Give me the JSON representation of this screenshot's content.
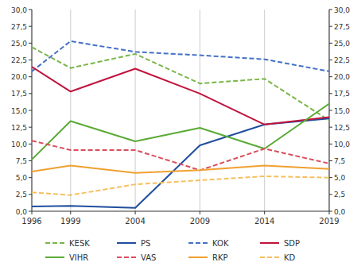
{
  "chart_data": {
    "type": "line",
    "x": [
      1996,
      1999,
      2004,
      2009,
      2014,
      2019
    ],
    "series": [
      {
        "name": "KESK",
        "color": "#7ab648",
        "line_style": "dashed",
        "values": [
          24.4,
          21.3,
          23.4,
          19.0,
          19.7,
          13.5
        ]
      },
      {
        "name": "PS",
        "color": "#1f4e9e",
        "line_style": "solid",
        "values": [
          0.7,
          0.8,
          0.5,
          9.8,
          12.9,
          13.8
        ]
      },
      {
        "name": "KOK",
        "color": "#4472c4",
        "line_style": "dashed",
        "values": [
          20.8,
          25.3,
          23.7,
          23.2,
          22.6,
          20.8
        ]
      },
      {
        "name": "SDP",
        "color": "#c0143c",
        "line_style": "solid",
        "values": [
          21.5,
          17.8,
          21.2,
          17.5,
          12.9,
          14.0
        ]
      },
      {
        "name": "VIHR",
        "color": "#5aaa35",
        "line_style": "solid",
        "values": [
          7.7,
          13.4,
          10.4,
          12.4,
          9.3,
          16.0
        ]
      },
      {
        "name": "VAS",
        "color": "#d94f5c",
        "line_style": "dashed",
        "values": [
          10.5,
          9.1,
          9.1,
          6.1,
          9.3,
          7.1
        ]
      },
      {
        "name": "RKP",
        "color": "#f0a030",
        "line_style": "solid",
        "values": [
          5.9,
          6.8,
          5.7,
          6.1,
          6.8,
          6.3
        ]
      },
      {
        "name": "KD",
        "color": "#f5c060",
        "line_style": "dashed",
        "values": [
          2.8,
          2.4,
          4.0,
          4.6,
          5.2,
          5.0
        ]
      }
    ],
    "xlim": [
      1996,
      2019
    ],
    "xticks": [
      1996,
      1999,
      2004,
      2009,
      2014,
      2019
    ],
    "ylim": [
      0,
      30
    ],
    "yticks": [
      {
        "value": 0.0,
        "label": "0,0"
      },
      {
        "value": 2.5,
        "label": "2,5"
      },
      {
        "value": 5.0,
        "label": "5,0"
      },
      {
        "value": 7.5,
        "label": "7,5"
      },
      {
        "value": 10.0,
        "label": "10,0"
      },
      {
        "value": 12.5,
        "label": "12,5"
      },
      {
        "value": 15.0,
        "label": "15,0"
      },
      {
        "value": 17.5,
        "label": "17,5"
      },
      {
        "value": 20.0,
        "label": "20,0"
      },
      {
        "value": 22.5,
        "label": "22,5"
      },
      {
        "value": 25.0,
        "label": "25,0"
      },
      {
        "value": 27.5,
        "label": "27,5"
      },
      {
        "value": 30.0,
        "label": "30,0"
      }
    ],
    "y2lim": [
      0,
      30
    ],
    "y2ticks": [
      {
        "value": 0.0,
        "label": "0,0"
      },
      {
        "value": 2.5,
        "label": "2,5"
      },
      {
        "value": 5.0,
        "label": "5,0"
      },
      {
        "value": 7.5,
        "label": "7,5"
      },
      {
        "value": 10.0,
        "label": "10,0"
      },
      {
        "value": 12.5,
        "label": "12,5"
      },
      {
        "value": 15.0,
        "label": "15,0"
      },
      {
        "value": 17.5,
        "label": "17,5"
      },
      {
        "value": 20.0,
        "label": "20,0"
      },
      {
        "value": 22.5,
        "label": "22,5"
      },
      {
        "value": 25.0,
        "label": "25,0"
      },
      {
        "value": 27.5,
        "label": "27,5"
      },
      {
        "value": 30.0,
        "label": "30,0"
      }
    ],
    "grid": "x",
    "legend": "bottom"
  }
}
